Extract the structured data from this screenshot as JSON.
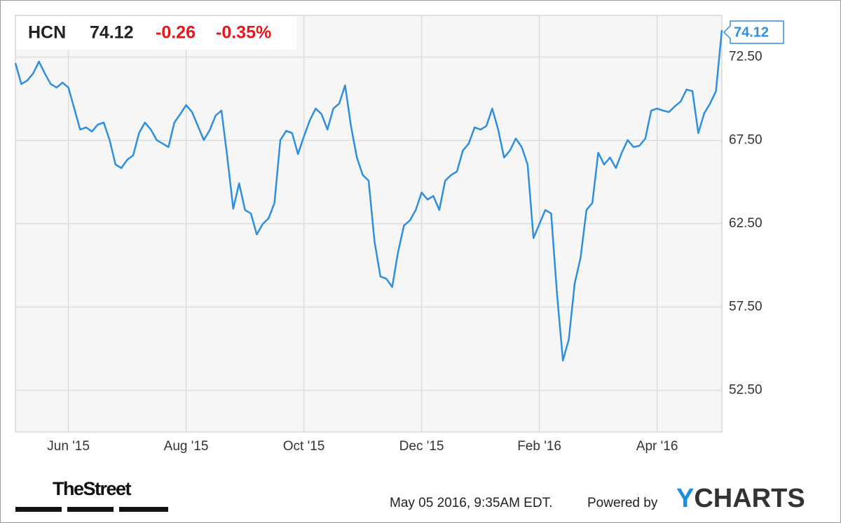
{
  "chart_data": {
    "type": "line",
    "symbol": "HCN",
    "change": -0.26,
    "change_percent": "-0.35%",
    "color": "#2e8ee0",
    "categories": [
      null,
      null,
      null,
      null,
      null,
      null,
      null,
      null,
      null,
      "Jun '15",
      null,
      null,
      null,
      null,
      null,
      null,
      null,
      null,
      null,
      null,
      null,
      null,
      null,
      null,
      null,
      null,
      null,
      null,
      null,
      "Aug '15",
      null,
      null,
      null,
      null,
      null,
      null,
      null,
      null,
      null,
      null,
      null,
      null,
      null,
      null,
      null,
      null,
      null,
      null,
      null,
      "Oct '15",
      null,
      null,
      null,
      null,
      null,
      null,
      null,
      null,
      null,
      null,
      null,
      null,
      null,
      null,
      null,
      null,
      null,
      null,
      null,
      "Dec '15",
      null,
      null,
      null,
      null,
      null,
      null,
      null,
      null,
      null,
      null,
      null,
      null,
      null,
      null,
      null,
      null,
      null,
      null,
      null,
      "Feb '16",
      null,
      null,
      null,
      null,
      null,
      null,
      null,
      null,
      null,
      null,
      null,
      null,
      null,
      null,
      null,
      null,
      null,
      null,
      null,
      "Apr '16",
      null,
      null,
      null,
      null,
      null,
      null,
      null,
      null,
      null,
      null,
      null
    ],
    "values": [
      72.14,
      70.88,
      71.09,
      71.51,
      72.23,
      71.51,
      70.88,
      70.67,
      70.97,
      70.67,
      69.41,
      68.15,
      68.28,
      68.03,
      68.45,
      68.57,
      67.52,
      66.05,
      65.84,
      66.34,
      66.6,
      67.94,
      68.57,
      68.15,
      67.52,
      67.31,
      67.1,
      68.57,
      69.08,
      69.62,
      69.2,
      68.36,
      67.52,
      68.11,
      68.99,
      69.29,
      66.47,
      63.4,
      64.92,
      63.32,
      63.11,
      61.85,
      62.48,
      62.82,
      63.74,
      67.52,
      68.07,
      67.94,
      66.68,
      67.73,
      68.7,
      69.41,
      69.08,
      68.15,
      69.41,
      69.71,
      70.8,
      68.36,
      66.47,
      65.42,
      65.08,
      61.43,
      59.33,
      59.2,
      58.7,
      60.8,
      62.39,
      62.69,
      63.32,
      64.37,
      63.95,
      64.16,
      63.32,
      65.08,
      65.42,
      65.63,
      66.89,
      67.31,
      68.28,
      68.15,
      68.36,
      69.41,
      68.15,
      66.47,
      66.89,
      67.61,
      67.1,
      66.05,
      61.64,
      62.48,
      63.32,
      63.11,
      58.28,
      54.29,
      55.55,
      58.91,
      60.46,
      63.32,
      63.74,
      66.76,
      66.05,
      66.47,
      65.84,
      66.76,
      67.52,
      67.1,
      67.18,
      67.61,
      69.29,
      69.41,
      69.29,
      69.2,
      69.54,
      69.83,
      70.55,
      70.46,
      67.94,
      69.12,
      69.71,
      70.46,
      74.12
    ],
    "ylim": [
      50,
      75
    ],
    "yticks": [
      {
        "value": 52.5,
        "label": "52.50"
      },
      {
        "value": 57.5,
        "label": "57.50"
      },
      {
        "value": 62.5,
        "label": "62.50"
      },
      {
        "value": 67.5,
        "label": "67.50"
      },
      {
        "value": 72.5,
        "label": "72.50"
      }
    ],
    "grid": true,
    "publisher": "TheStreet",
    "timestamp": "May 05 2016, 9:35AM EDT.",
    "powered_by": "Powered by",
    "brand": "YCHARTS"
  }
}
